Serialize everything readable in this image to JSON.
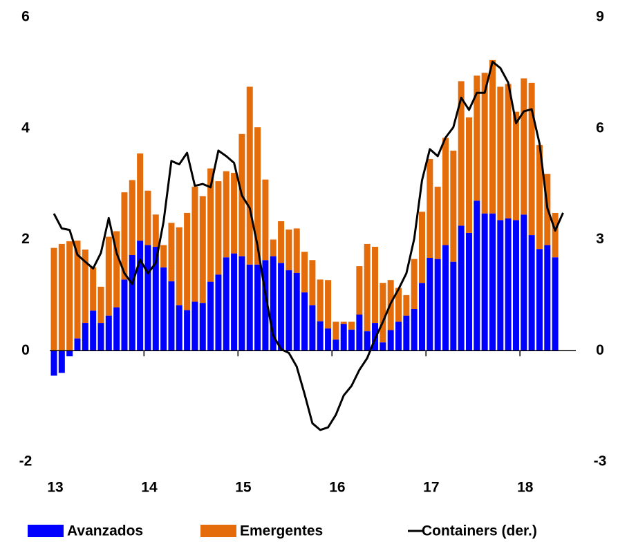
{
  "chart_data": {
    "type": "bar",
    "stacked": true,
    "legend": "bottom",
    "categories": [
      "13",
      null,
      null,
      null,
      null,
      null,
      null,
      null,
      null,
      null,
      null,
      null,
      "14",
      null,
      null,
      null,
      null,
      null,
      null,
      null,
      null,
      null,
      null,
      null,
      "15",
      null,
      null,
      null,
      null,
      null,
      null,
      null,
      null,
      null,
      null,
      null,
      "16",
      null,
      null,
      null,
      null,
      null,
      null,
      null,
      null,
      null,
      null,
      null,
      "17",
      null,
      null,
      null,
      null,
      null,
      null,
      null,
      null,
      null,
      null,
      null,
      "18",
      null,
      null,
      null,
      null,
      null
    ],
    "series": [
      {
        "name": "Avanzados",
        "color": "#0000ff",
        "type": "bar",
        "values": [
          -0.45,
          -0.4,
          -0.1,
          0.22,
          0.5,
          0.72,
          0.5,
          0.63,
          0.78,
          1.28,
          1.72,
          1.98,
          1.9,
          1.87,
          1.5,
          1.25,
          0.82,
          0.73,
          0.88,
          0.86,
          1.24,
          1.37,
          1.68,
          1.75,
          1.7,
          1.55,
          1.55,
          1.63,
          1.7,
          1.58,
          1.45,
          1.4,
          1.05,
          0.82,
          0.53,
          0.4,
          0.2,
          0.48,
          0.38,
          0.65,
          0.35,
          0.5,
          0.15,
          0.37,
          0.52,
          0.63,
          0.75,
          1.22,
          1.67,
          1.65,
          1.9,
          1.6,
          2.25,
          2.12,
          2.7,
          2.47,
          2.47,
          2.35,
          2.38,
          2.35,
          2.45,
          2.08,
          1.83,
          1.9,
          1.68,
          null
        ]
      },
      {
        "name": "Emergentes",
        "color": "#e46c0a",
        "type": "bar",
        "values": [
          1.85,
          1.92,
          1.97,
          1.76,
          1.32,
          0.78,
          0.65,
          1.42,
          1.37,
          1.57,
          1.35,
          1.57,
          0.98,
          0.58,
          0.4,
          1.05,
          1.4,
          1.75,
          2.07,
          1.92,
          2.04,
          1.68,
          1.55,
          1.45,
          2.2,
          3.2,
          2.47,
          1.45,
          0.3,
          0.75,
          0.73,
          0.8,
          0.73,
          0.81,
          0.75,
          0.87,
          0.32,
          0.04,
          0.14,
          0.87,
          1.57,
          1.37,
          1.07,
          0.9,
          0.61,
          0.37,
          0.9,
          1.28,
          1.78,
          1.3,
          1.93,
          2.0,
          2.6,
          2.08,
          2.25,
          2.53,
          2.76,
          2.4,
          2.42,
          1.95,
          2.45,
          2.74,
          1.87,
          1.28,
          0.8,
          null
        ]
      },
      {
        "name": "Containers (der.)",
        "color": "#000000",
        "type": "line",
        "axis": "y2",
        "values": [
          3.7,
          3.3,
          3.26,
          2.59,
          2.4,
          2.22,
          2.64,
          3.58,
          2.64,
          2.09,
          1.8,
          2.46,
          2.09,
          2.37,
          3.48,
          5.12,
          5.03,
          5.34,
          4.45,
          4.5,
          4.41,
          5.4,
          5.25,
          5.07,
          4.19,
          3.85,
          2.83,
          1.53,
          0.41,
          0.04,
          -0.06,
          -0.43,
          -1.17,
          -1.96,
          -2.14,
          -2.07,
          -1.73,
          -1.21,
          -0.95,
          -0.52,
          -0.2,
          0.32,
          0.78,
          1.28,
          1.66,
          2.09,
          3.02,
          4.6,
          5.44,
          5.25,
          5.75,
          6.03,
          6.83,
          6.5,
          6.96,
          6.96,
          7.8,
          7.63,
          7.24,
          6.14,
          6.46,
          6.52,
          5.59,
          3.85,
          3.24,
          3.72
        ]
      }
    ],
    "ylim": [
      -2,
      6
    ],
    "yticks": [
      -2,
      0,
      2,
      4,
      6
    ],
    "y2lim": [
      -3,
      9
    ],
    "y2ticks": [
      -3,
      0,
      3,
      6,
      9
    ]
  }
}
